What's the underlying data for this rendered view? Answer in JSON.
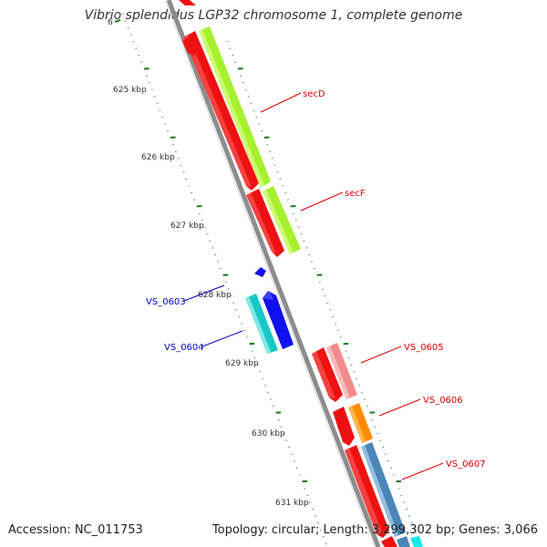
{
  "title": "Vibrio splendidus LGP32 chromosome 1, complete genome",
  "footer": {
    "accession": "Accession: NC_011753",
    "summary": "Topology: circular; Length: 3,299,302 bp; Genes: 3,066"
  },
  "ruler": {
    "top_partial_label": "6",
    "labels": [
      "625 kbp",
      "626 kbp",
      "627 kbp",
      "628 kbp",
      "629 kbp",
      "630 kbp",
      "631 kbp"
    ]
  },
  "genes": [
    {
      "label": "secD",
      "strand": "forward",
      "color": "#ee1111"
    },
    {
      "label": "secF",
      "strand": "forward",
      "color": "#ee1111"
    },
    {
      "label": "VS_0603",
      "strand": "reverse",
      "color": "#1111cc"
    },
    {
      "label": "VS_0604",
      "strand": "reverse",
      "color": "#1111cc"
    },
    {
      "label": "VS_0605",
      "strand": "forward",
      "color": "#ee1111"
    },
    {
      "label": "VS_0606",
      "strand": "forward",
      "color": "#ee1111"
    },
    {
      "label": "VS_0607",
      "strand": "forward",
      "color": "#ee1111"
    }
  ],
  "colors": {
    "backbone": "#8c8c8c",
    "forward_gene": "#ee1111",
    "reverse_gene": "#1111ee",
    "ticks": "#1a7a1a",
    "cog_green": "#a6f030",
    "cog_pink": "#f28c8c",
    "cog_orange": "#ff8c00",
    "cog_steel": "#4a86b8",
    "cog_cyan": "#18c8c8",
    "label_forward": "#dd0000",
    "label_reverse": "#0000cc"
  }
}
